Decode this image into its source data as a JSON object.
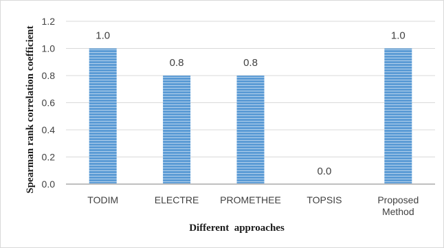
{
  "chart_data": {
    "type": "bar",
    "categories": [
      "TODIM",
      "ELECTRE",
      "PROMETHEE",
      "TOPSIS",
      "Proposed Method"
    ],
    "category_lines": [
      [
        "TODIM"
      ],
      [
        "ELECTRE"
      ],
      [
        "PROMETHEE"
      ],
      [
        "TOPSIS"
      ],
      [
        "Proposed",
        "Method"
      ]
    ],
    "values": [
      1.0,
      0.8,
      0.8,
      0.0,
      1.0
    ],
    "data_labels": [
      "1.0",
      "0.8",
      "0.8",
      "0.0",
      "1.0"
    ],
    "ylim": [
      0,
      1.2
    ],
    "yticks": [
      "0.0",
      "0.2",
      "0.4",
      "0.6",
      "0.8",
      "1.0",
      "1.2"
    ],
    "ytick_values": [
      0,
      0.2,
      0.4,
      0.6,
      0.8,
      1.0,
      1.2
    ],
    "xlabel": "Different  approaches",
    "ylabel": "Spearman rank correlation coefficient",
    "grid": true,
    "legend": "none",
    "colors": {
      "bar": "#5b9bd5",
      "bar_stripe": "#ffffff",
      "grid": "#d9d9d9",
      "axis": "#bfbfbf"
    }
  }
}
